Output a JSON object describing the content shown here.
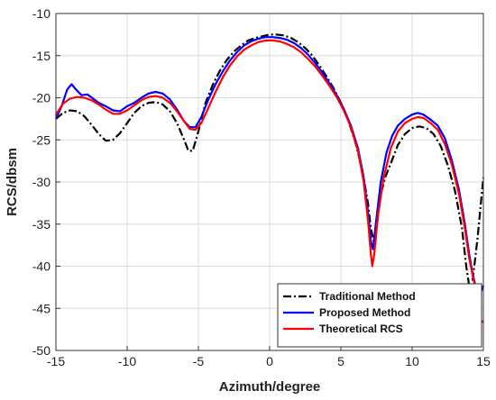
{
  "chart_data": {
    "type": "line",
    "title": "",
    "xlabel": "Azimuth/degree",
    "ylabel": "RCS/dbsm",
    "xlim": [
      -15,
      15
    ],
    "ylim": [
      -50,
      -10
    ],
    "xticks": [
      -15,
      -10,
      -5,
      0,
      5,
      10,
      15
    ],
    "yticks": [
      -10,
      -15,
      -20,
      -25,
      -30,
      -35,
      -40,
      -45,
      -50
    ],
    "grid": true,
    "legend_position": "bottom-right",
    "series": [
      {
        "name": "Traditional Method",
        "color": "#000000",
        "style": "dash-dot",
        "points": [
          [
            -15,
            -22.5
          ],
          [
            -14.5,
            -21.8
          ],
          [
            -14,
            -21.5
          ],
          [
            -13.5,
            -21.6
          ],
          [
            -13,
            -22.2
          ],
          [
            -12.5,
            -23.2
          ],
          [
            -12,
            -24.3
          ],
          [
            -11.5,
            -25.1
          ],
          [
            -11,
            -25
          ],
          [
            -10.5,
            -24.2
          ],
          [
            -10,
            -23
          ],
          [
            -9.5,
            -21.8
          ],
          [
            -9,
            -21
          ],
          [
            -8.5,
            -20.6
          ],
          [
            -8,
            -20.5
          ],
          [
            -7.5,
            -20.8
          ],
          [
            -7,
            -21.6
          ],
          [
            -6.5,
            -23
          ],
          [
            -6,
            -25
          ],
          [
            -5.7,
            -26.3
          ],
          [
            -5.4,
            -26.3
          ],
          [
            -5,
            -24
          ],
          [
            -4.5,
            -20.6
          ],
          [
            -4,
            -18.5
          ],
          [
            -3.5,
            -16.8
          ],
          [
            -3,
            -15.5
          ],
          [
            -2.5,
            -14.5
          ],
          [
            -2,
            -13.8
          ],
          [
            -1.5,
            -13.2
          ],
          [
            -1,
            -12.9
          ],
          [
            -0.5,
            -12.7
          ],
          [
            0,
            -12.5
          ],
          [
            0.5,
            -12.5
          ],
          [
            1,
            -12.6
          ],
          [
            1.5,
            -12.9
          ],
          [
            2,
            -13.4
          ],
          [
            2.5,
            -14.1
          ],
          [
            3,
            -15
          ],
          [
            3.5,
            -16.2
          ],
          [
            4,
            -17.5
          ],
          [
            4.5,
            -18.9
          ],
          [
            5,
            -20.6
          ],
          [
            5.5,
            -22.6
          ],
          [
            6,
            -25.2
          ],
          [
            6.5,
            -28.6
          ],
          [
            6.9,
            -32.5
          ],
          [
            7.1,
            -35.5
          ],
          [
            7.3,
            -37
          ],
          [
            7.5,
            -35.5
          ],
          [
            7.8,
            -31.5
          ],
          [
            8.1,
            -29.5
          ],
          [
            8.5,
            -27.8
          ],
          [
            9,
            -25.6
          ],
          [
            9.5,
            -24.3
          ],
          [
            10,
            -23.6
          ],
          [
            10.5,
            -23.4
          ],
          [
            11,
            -23.6
          ],
          [
            11.5,
            -24.3
          ],
          [
            12,
            -25.7
          ],
          [
            12.5,
            -28
          ],
          [
            13,
            -31
          ],
          [
            13.5,
            -35.5
          ],
          [
            13.8,
            -40
          ],
          [
            14,
            -42.3
          ],
          [
            14.2,
            -42.2
          ],
          [
            14.4,
            -39.5
          ],
          [
            14.6,
            -36.5
          ],
          [
            14.8,
            -33
          ],
          [
            15,
            -29.5
          ]
        ]
      },
      {
        "name": "Proposed Method",
        "color": "#0000ff",
        "style": "solid",
        "points": [
          [
            -15,
            -22.5
          ],
          [
            -14.6,
            -21
          ],
          [
            -14.2,
            -19
          ],
          [
            -13.9,
            -18.4
          ],
          [
            -13.6,
            -19
          ],
          [
            -13.2,
            -19.7
          ],
          [
            -12.8,
            -19.6
          ],
          [
            -12.4,
            -20.1
          ],
          [
            -12,
            -20.6
          ],
          [
            -11.5,
            -21
          ],
          [
            -11,
            -21.5
          ],
          [
            -10.5,
            -21.6
          ],
          [
            -10,
            -21
          ],
          [
            -9.5,
            -20.6
          ],
          [
            -9,
            -20
          ],
          [
            -8.5,
            -19.5
          ],
          [
            -8,
            -19.3
          ],
          [
            -7.5,
            -19.5
          ],
          [
            -7,
            -20.2
          ],
          [
            -6.5,
            -21.4
          ],
          [
            -6,
            -22.8
          ],
          [
            -5.6,
            -23.5
          ],
          [
            -5.2,
            -23.5
          ],
          [
            -4.8,
            -22.3
          ],
          [
            -4.3,
            -20.2
          ],
          [
            -3.8,
            -18.4
          ],
          [
            -3.3,
            -16.9
          ],
          [
            -2.8,
            -15.6
          ],
          [
            -2.3,
            -14.6
          ],
          [
            -1.8,
            -13.8
          ],
          [
            -1.3,
            -13.3
          ],
          [
            -0.8,
            -13
          ],
          [
            -0.3,
            -12.8
          ],
          [
            0.2,
            -12.8
          ],
          [
            0.7,
            -12.9
          ],
          [
            1.2,
            -13.1
          ],
          [
            1.7,
            -13.5
          ],
          [
            2.2,
            -14.1
          ],
          [
            2.7,
            -14.9
          ],
          [
            3.2,
            -15.9
          ],
          [
            3.7,
            -17
          ],
          [
            4.2,
            -18.3
          ],
          [
            4.7,
            -19.7
          ],
          [
            5.2,
            -21.3
          ],
          [
            5.7,
            -23.3
          ],
          [
            6.2,
            -26
          ],
          [
            6.6,
            -29.5
          ],
          [
            6.9,
            -33.5
          ],
          [
            7.1,
            -37
          ],
          [
            7.25,
            -38
          ],
          [
            7.45,
            -35
          ],
          [
            7.8,
            -30
          ],
          [
            8.2,
            -26.5
          ],
          [
            8.6,
            -24.5
          ],
          [
            9,
            -23.3
          ],
          [
            9.5,
            -22.5
          ],
          [
            10,
            -22
          ],
          [
            10.4,
            -21.8
          ],
          [
            10.8,
            -22
          ],
          [
            11.3,
            -22.6
          ],
          [
            11.8,
            -23.3
          ],
          [
            12.3,
            -24.8
          ],
          [
            12.8,
            -27.5
          ],
          [
            13.3,
            -31
          ],
          [
            13.7,
            -35
          ],
          [
            14,
            -38.5
          ],
          [
            14.2,
            -40.5
          ],
          [
            14.4,
            -42
          ],
          [
            14.6,
            -43.5
          ],
          [
            14.8,
            -43.2
          ],
          [
            15,
            -42.3
          ]
        ]
      },
      {
        "name": "Theoretical RCS",
        "color": "#ff0000",
        "style": "solid",
        "points": [
          [
            -15,
            -22
          ],
          [
            -14.5,
            -20.7
          ],
          [
            -14,
            -20.1
          ],
          [
            -13.5,
            -19.9
          ],
          [
            -13,
            -20
          ],
          [
            -12.5,
            -20.3
          ],
          [
            -12,
            -20.8
          ],
          [
            -11.5,
            -21.4
          ],
          [
            -11,
            -21.9
          ],
          [
            -10.5,
            -21.9
          ],
          [
            -10,
            -21.5
          ],
          [
            -9.5,
            -20.9
          ],
          [
            -9,
            -20.3
          ],
          [
            -8.5,
            -19.9
          ],
          [
            -8,
            -19.8
          ],
          [
            -7.5,
            -20
          ],
          [
            -7,
            -20.6
          ],
          [
            -6.5,
            -21.6
          ],
          [
            -6,
            -22.8
          ],
          [
            -5.6,
            -23.7
          ],
          [
            -5.2,
            -23.8
          ],
          [
            -4.8,
            -23
          ],
          [
            -4.3,
            -21.2
          ],
          [
            -3.8,
            -19.3
          ],
          [
            -3.3,
            -17.6
          ],
          [
            -2.8,
            -16.2
          ],
          [
            -2.3,
            -15.1
          ],
          [
            -1.8,
            -14.3
          ],
          [
            -1.3,
            -13.8
          ],
          [
            -0.8,
            -13.4
          ],
          [
            -0.3,
            -13.2
          ],
          [
            0.2,
            -13.2
          ],
          [
            0.7,
            -13.3
          ],
          [
            1.2,
            -13.6
          ],
          [
            1.7,
            -14
          ],
          [
            2.2,
            -14.6
          ],
          [
            2.7,
            -15.4
          ],
          [
            3.2,
            -16.3
          ],
          [
            3.7,
            -17.4
          ],
          [
            4.2,
            -18.6
          ],
          [
            4.7,
            -19.9
          ],
          [
            5.2,
            -21.5
          ],
          [
            5.7,
            -23.5
          ],
          [
            6.2,
            -26.3
          ],
          [
            6.6,
            -30
          ],
          [
            6.9,
            -34.5
          ],
          [
            7.1,
            -38.5
          ],
          [
            7.2,
            -40
          ],
          [
            7.35,
            -38.5
          ],
          [
            7.6,
            -34
          ],
          [
            8,
            -29.5
          ],
          [
            8.5,
            -26
          ],
          [
            9,
            -24
          ],
          [
            9.5,
            -23
          ],
          [
            10,
            -22.5
          ],
          [
            10.4,
            -22.3
          ],
          [
            10.8,
            -22.4
          ],
          [
            11.3,
            -23
          ],
          [
            11.8,
            -23.8
          ],
          [
            12.3,
            -25.5
          ],
          [
            12.8,
            -28
          ],
          [
            13.3,
            -31.5
          ],
          [
            13.7,
            -35.5
          ],
          [
            14,
            -39
          ],
          [
            14.3,
            -41.5
          ],
          [
            14.5,
            -43
          ],
          [
            14.7,
            -45
          ],
          [
            14.85,
            -46.7
          ],
          [
            15,
            -46.5
          ]
        ]
      }
    ]
  }
}
